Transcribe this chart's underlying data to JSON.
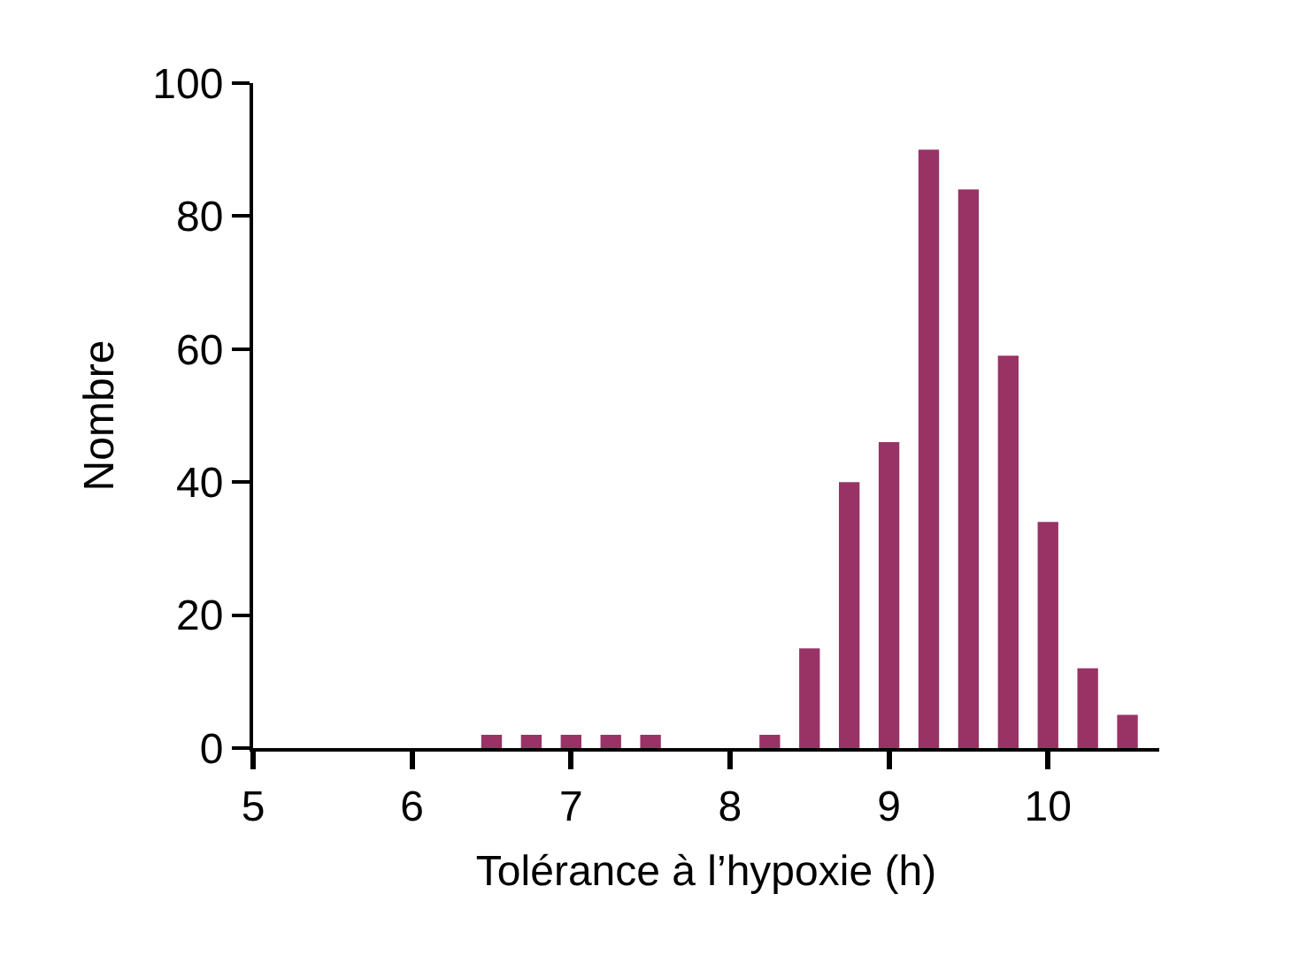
{
  "chart_data": {
    "type": "bar",
    "xlabel": "Tolérance à l’hypoxie (h)",
    "ylabel": "Nombre",
    "x": [
      6.5,
      6.75,
      7,
      7.25,
      7.5,
      8.25,
      8.5,
      8.75,
      9,
      9.25,
      9.5,
      9.75,
      10,
      10.25,
      10.5
    ],
    "values": [
      2,
      2,
      2,
      2,
      2,
      2,
      15,
      40,
      46,
      90,
      84,
      59,
      34,
      12,
      5
    ],
    "color": "#993366",
    "xlim": [
      5,
      10.7
    ],
    "xticks": [
      5,
      6,
      7,
      8,
      9,
      10
    ],
    "ylim": [
      0,
      100
    ],
    "yticks": [
      0,
      20,
      40,
      60,
      80,
      100
    ]
  }
}
